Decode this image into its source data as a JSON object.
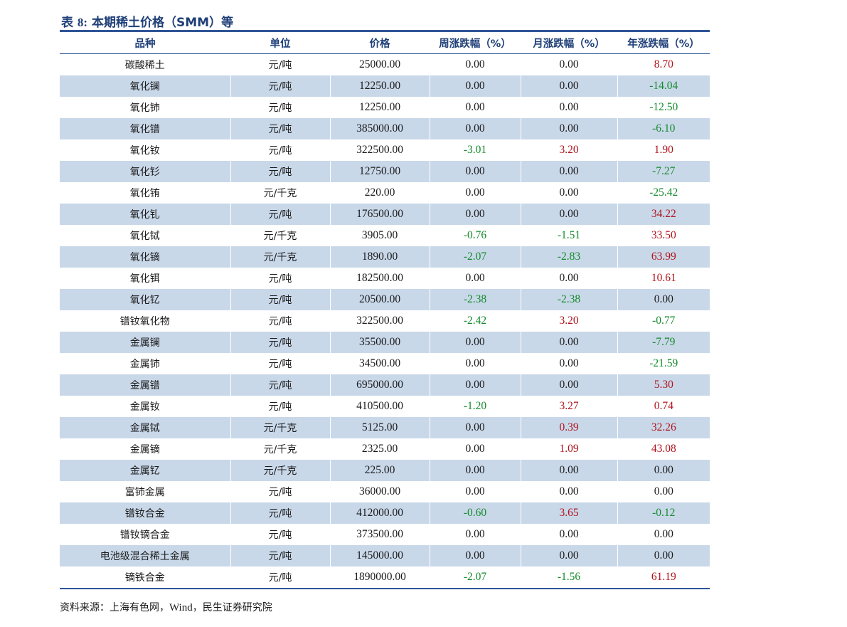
{
  "title": {
    "prefix": "表 ",
    "number": "8:",
    "text": " 本期稀土价格（SMM）等"
  },
  "table": {
    "headers": [
      "品种",
      "单位",
      "价格",
      "周涨跌幅（%）",
      "月涨跌幅（%）",
      "年涨跌幅（%）"
    ],
    "rows": [
      [
        "碳酸稀土",
        "元/吨",
        "25000.00",
        "0.00",
        "0.00",
        "8.70"
      ],
      [
        "氧化镧",
        "元/吨",
        "12250.00",
        "0.00",
        "0.00",
        "-14.04"
      ],
      [
        "氧化铈",
        "元/吨",
        "12250.00",
        "0.00",
        "0.00",
        "-12.50"
      ],
      [
        "氧化镨",
        "元/吨",
        "385000.00",
        "0.00",
        "0.00",
        "-6.10"
      ],
      [
        "氧化钕",
        "元/吨",
        "322500.00",
        "-3.01",
        "3.20",
        "1.90"
      ],
      [
        "氧化钐",
        "元/吨",
        "12750.00",
        "0.00",
        "0.00",
        "-7.27"
      ],
      [
        "氧化铕",
        "元/千克",
        "220.00",
        "0.00",
        "0.00",
        "-25.42"
      ],
      [
        "氧化钆",
        "元/吨",
        "176500.00",
        "0.00",
        "0.00",
        "34.22"
      ],
      [
        "氧化铽",
        "元/千克",
        "3905.00",
        "-0.76",
        "-1.51",
        "33.50"
      ],
      [
        "氧化镝",
        "元/千克",
        "1890.00",
        "-2.07",
        "-2.83",
        "63.99"
      ],
      [
        "氧化铒",
        "元/吨",
        "182500.00",
        "0.00",
        "0.00",
        "10.61"
      ],
      [
        "氧化钇",
        "元/吨",
        "20500.00",
        "-2.38",
        "-2.38",
        "0.00"
      ],
      [
        "镨钕氧化物",
        "元/吨",
        "322500.00",
        "-2.42",
        "3.20",
        "-0.77"
      ],
      [
        "金属镧",
        "元/吨",
        "35500.00",
        "0.00",
        "0.00",
        "-7.79"
      ],
      [
        "金属铈",
        "元/吨",
        "34500.00",
        "0.00",
        "0.00",
        "-21.59"
      ],
      [
        "金属镨",
        "元/吨",
        "695000.00",
        "0.00",
        "0.00",
        "5.30"
      ],
      [
        "金属钕",
        "元/吨",
        "410500.00",
        "-1.20",
        "3.27",
        "0.74"
      ],
      [
        "金属铽",
        "元/千克",
        "5125.00",
        "0.00",
        "0.39",
        "32.26"
      ],
      [
        "金属镝",
        "元/千克",
        "2325.00",
        "0.00",
        "1.09",
        "43.08"
      ],
      [
        "金属钇",
        "元/千克",
        "225.00",
        "0.00",
        "0.00",
        "0.00"
      ],
      [
        "富铈金属",
        "元/吨",
        "36000.00",
        "0.00",
        "0.00",
        "0.00"
      ],
      [
        "镨钕合金",
        "元/吨",
        "412000.00",
        "-0.60",
        "3.65",
        "-0.12"
      ],
      [
        "镨钕镝合金",
        "元/吨",
        "373500.00",
        "0.00",
        "0.00",
        "0.00"
      ],
      [
        "电池级混合稀土金属",
        "元/吨",
        "145000.00",
        "0.00",
        "0.00",
        "0.00"
      ],
      [
        "镝铁合金",
        "元/吨",
        "1890000.00",
        "-2.07",
        "-1.56",
        "61.19"
      ]
    ]
  },
  "source": {
    "label": "资料来源：上海有色网，",
    "wind": "Wind",
    "rest": "，民生证券研究院"
  },
  "colors": {
    "header_text": "#1f3f78",
    "rule": "#2e5597",
    "row_shade": "#c9d8e9",
    "positive": "#b0121b",
    "negative": "#138a2b"
  }
}
